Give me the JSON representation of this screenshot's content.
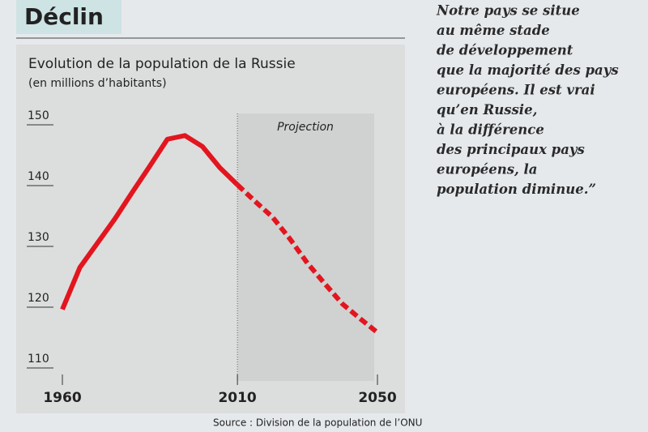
{
  "header": "Déclin",
  "chart_data": {
    "type": "line",
    "title": "Evolution de la population de la Russie",
    "subtitle": "(en millions d’habitants)",
    "annotation": "Projection",
    "source": "Source : Division de la population de l’ONU",
    "projection_start": 2010,
    "x": [
      1960,
      1965,
      1970,
      1975,
      1980,
      1985,
      1990,
      1995,
      2000,
      2005,
      2010,
      2015,
      2020,
      2025,
      2030,
      2035,
      2040,
      2045,
      2050
    ],
    "series": [
      {
        "color": "#e3151f",
        "dashed": false,
        "values": [
          118.7,
          125.6,
          129.6,
          133.6,
          138.0,
          142.3,
          146.7,
          147.3,
          145.5,
          142.0,
          139.2,
          null,
          null,
          null,
          null,
          null,
          null,
          null,
          null
        ]
      },
      {
        "color": "#e3151f",
        "dashed": true,
        "values": [
          null,
          null,
          null,
          null,
          null,
          null,
          null,
          null,
          null,
          null,
          139.2,
          136.5,
          133.9,
          130.3,
          126.3,
          122.9,
          119.6,
          117.2,
          114.9
        ]
      }
    ],
    "xlim": [
      1960,
      2050
    ],
    "xticks": [
      1960,
      2010,
      2050
    ],
    "ylim": [
      110,
      150
    ],
    "yticks": [
      110,
      120,
      130,
      140,
      150
    ]
  },
  "quote": [
    "Notre pays se situe",
    "au même stade",
    "de développement",
    "que la majorité des pays",
    "européens. Il est vrai",
    "qu’en Russie,",
    "à la différence",
    "des principaux pays",
    "européens, la",
    "population diminue.”"
  ]
}
